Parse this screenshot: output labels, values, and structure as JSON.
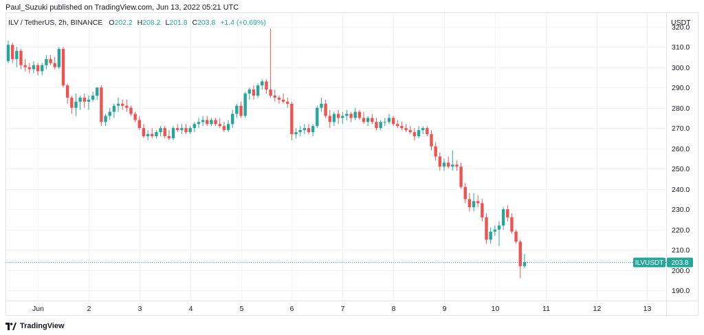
{
  "header": {
    "publisher": "Paul_Suzuki published on TradingView.com, Jun 13, 2022 05:21 UTC"
  },
  "legend": {
    "symbol": "ILV / TetherUS, 2h, BINANCE",
    "o_label": "O",
    "o": "202.2",
    "h_label": "H",
    "h": "208.2",
    "l_label": "L",
    "l": "201.8",
    "c_label": "C",
    "c": "203.8",
    "change": "+1.4 (+0.69%)"
  },
  "price_axis": {
    "currency": "USDT"
  },
  "price_tag": {
    "ticker": "ILVUSDT",
    "value": "203.8"
  },
  "footer": {
    "brand": "TradingView"
  },
  "colors": {
    "up": "#26a69a",
    "down": "#ef5350",
    "grid": "#f0f3fa",
    "axis_text": "#131722"
  },
  "chart_data": {
    "type": "candlestick",
    "title": "ILV / TetherUS, 2h, BINANCE",
    "ylabel": "USDT",
    "ylim": [
      185,
      327
    ],
    "yticks": [
      190,
      200,
      210,
      220,
      230,
      240,
      250,
      260,
      270,
      280,
      290,
      300,
      310,
      320
    ],
    "xticks": [
      {
        "label": "Jun",
        "index": 7
      },
      {
        "label": "2",
        "index": 19
      },
      {
        "label": "3",
        "index": 31
      },
      {
        "label": "4",
        "index": 43
      },
      {
        "label": "5",
        "index": 55
      },
      {
        "label": "6",
        "index": 67
      },
      {
        "label": "7",
        "index": 79
      },
      {
        "label": "8",
        "index": 91
      },
      {
        "label": "9",
        "index": 103
      },
      {
        "label": "10",
        "index": 115
      },
      {
        "label": "11",
        "index": 127
      },
      {
        "label": "12",
        "index": 139
      },
      {
        "label": "13",
        "index": 151
      }
    ],
    "last_price": 203.8,
    "ohlc": [
      [
        303,
        313,
        302,
        311
      ],
      [
        311,
        312,
        302,
        304
      ],
      [
        304,
        310,
        300,
        308
      ],
      [
        308,
        309,
        299,
        301
      ],
      [
        301,
        304,
        298,
        300
      ],
      [
        300,
        302,
        297,
        299
      ],
      [
        299,
        303,
        297,
        301
      ],
      [
        301,
        302,
        296,
        298
      ],
      [
        298,
        302,
        296,
        301
      ],
      [
        301,
        306,
        299,
        304
      ],
      [
        304,
        306,
        301,
        302
      ],
      [
        302,
        305,
        299,
        300
      ],
      [
        300,
        310,
        299,
        309
      ],
      [
        309,
        310,
        290,
        291
      ],
      [
        291,
        292,
        282,
        285
      ],
      [
        285,
        286,
        277,
        280
      ],
      [
        280,
        287,
        276,
        283
      ],
      [
        283,
        286,
        279,
        285
      ],
      [
        285,
        287,
        280,
        283
      ],
      [
        283,
        286,
        279,
        284
      ],
      [
        284,
        288,
        283,
        286
      ],
      [
        286,
        290,
        284,
        290
      ],
      [
        290,
        291,
        271,
        273
      ],
      [
        273,
        277,
        271,
        276
      ],
      [
        276,
        280,
        274,
        278
      ],
      [
        278,
        282,
        275,
        281
      ],
      [
        281,
        285,
        278,
        282
      ],
      [
        282,
        284,
        279,
        281
      ],
      [
        281,
        284,
        278,
        280
      ],
      [
        280,
        281,
        276,
        277
      ],
      [
        277,
        278,
        273,
        274
      ],
      [
        274,
        276,
        269,
        270
      ],
      [
        270,
        272,
        265,
        266
      ],
      [
        266,
        269,
        264,
        267
      ],
      [
        267,
        270,
        265,
        266
      ],
      [
        266,
        269,
        265,
        268
      ],
      [
        268,
        271,
        266,
        270
      ],
      [
        270,
        271,
        265,
        266
      ],
      [
        266,
        269,
        264,
        265
      ],
      [
        265,
        271,
        264,
        270
      ],
      [
        270,
        272,
        268,
        269
      ],
      [
        269,
        272,
        267,
        270
      ],
      [
        270,
        272,
        267,
        268
      ],
      [
        268,
        271,
        267,
        270
      ],
      [
        270,
        273,
        268,
        272
      ],
      [
        272,
        275,
        270,
        273
      ],
      [
        273,
        276,
        271,
        274
      ],
      [
        274,
        276,
        271,
        272
      ],
      [
        272,
        275,
        271,
        274
      ],
      [
        274,
        275,
        271,
        272
      ],
      [
        272,
        275,
        270,
        271
      ],
      [
        271,
        273,
        268,
        269
      ],
      [
        269,
        274,
        268,
        272
      ],
      [
        272,
        279,
        270,
        277
      ],
      [
        277,
        282,
        275,
        281
      ],
      [
        281,
        283,
        275,
        276
      ],
      [
        276,
        288,
        275,
        287
      ],
      [
        287,
        290,
        284,
        289
      ],
      [
        289,
        291,
        284,
        286
      ],
      [
        286,
        292,
        285,
        291
      ],
      [
        291,
        294,
        289,
        293
      ],
      [
        293,
        294,
        287,
        289
      ],
      [
        289,
        319,
        285,
        286
      ],
      [
        286,
        289,
        283,
        285
      ],
      [
        285,
        286,
        282,
        284
      ],
      [
        284,
        287,
        282,
        283
      ],
      [
        283,
        285,
        280,
        282
      ],
      [
        282,
        283,
        264,
        267
      ],
      [
        267,
        270,
        265,
        268
      ],
      [
        268,
        271,
        266,
        269
      ],
      [
        269,
        272,
        267,
        270
      ],
      [
        270,
        272,
        267,
        268
      ],
      [
        268,
        272,
        266,
        271
      ],
      [
        271,
        281,
        270,
        280
      ],
      [
        280,
        285,
        278,
        282
      ],
      [
        282,
        284,
        275,
        276
      ],
      [
        276,
        279,
        270,
        273
      ],
      [
        273,
        278,
        271,
        277
      ],
      [
        277,
        279,
        272,
        275
      ],
      [
        275,
        278,
        272,
        276
      ],
      [
        276,
        279,
        274,
        277
      ],
      [
        277,
        278,
        273,
        275
      ],
      [
        275,
        280,
        274,
        278
      ],
      [
        278,
        279,
        274,
        275
      ],
      [
        275,
        278,
        272,
        273
      ],
      [
        273,
        276,
        271,
        275
      ],
      [
        275,
        277,
        272,
        273
      ],
      [
        273,
        275,
        269,
        270
      ],
      [
        270,
        274,
        269,
        273
      ],
      [
        273,
        275,
        271,
        273
      ],
      [
        273,
        277,
        272,
        275
      ],
      [
        275,
        276,
        271,
        272
      ],
      [
        272,
        274,
        270,
        271
      ],
      [
        271,
        273,
        269,
        270
      ],
      [
        270,
        272,
        268,
        269
      ],
      [
        269,
        271,
        267,
        268
      ],
      [
        268,
        270,
        264,
        266
      ],
      [
        266,
        271,
        265,
        269
      ],
      [
        269,
        271,
        267,
        270
      ],
      [
        270,
        271,
        266,
        267
      ],
      [
        267,
        269,
        259,
        261
      ],
      [
        261,
        263,
        254,
        256
      ],
      [
        256,
        258,
        249,
        251
      ],
      [
        251,
        255,
        249,
        253
      ],
      [
        253,
        256,
        250,
        251
      ],
      [
        251,
        259,
        249,
        252
      ],
      [
        252,
        254,
        249,
        251
      ],
      [
        251,
        253,
        240,
        241
      ],
      [
        241,
        243,
        233,
        235
      ],
      [
        235,
        238,
        229,
        231
      ],
      [
        231,
        238,
        229,
        234
      ],
      [
        234,
        237,
        231,
        233
      ],
      [
        233,
        235,
        224,
        226
      ],
      [
        226,
        228,
        213,
        215
      ],
      [
        215,
        221,
        213,
        219
      ],
      [
        219,
        222,
        217,
        220
      ],
      [
        220,
        224,
        212,
        222
      ],
      [
        222,
        231,
        220,
        230
      ],
      [
        230,
        232,
        224,
        226
      ],
      [
        226,
        228,
        218,
        219
      ],
      [
        219,
        220,
        213,
        214
      ],
      [
        214,
        215,
        196,
        202
      ],
      [
        202,
        208,
        201,
        204
      ]
    ]
  }
}
